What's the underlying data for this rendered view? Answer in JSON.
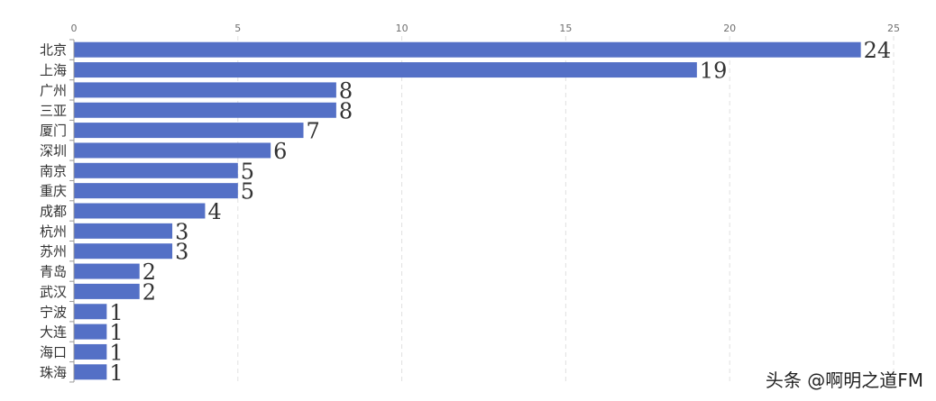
{
  "chart_data": {
    "type": "bar",
    "orientation": "horizontal",
    "categories": [
      "北京",
      "上海",
      "广州",
      "三亚",
      "厦门",
      "深圳",
      "南京",
      "重庆",
      "成都",
      "杭州",
      "苏州",
      "青岛",
      "武汉",
      "宁波",
      "大连",
      "海口",
      "珠海"
    ],
    "values": [
      24,
      19,
      8,
      8,
      7,
      6,
      5,
      5,
      4,
      3,
      3,
      2,
      2,
      1,
      1,
      1,
      1
    ],
    "xlim": [
      0,
      25
    ],
    "xticks": [
      0,
      5,
      10,
      15,
      20,
      25
    ],
    "x_axis_position": "top",
    "grid": true,
    "data_labels": true,
    "bar_color": "#5470c6",
    "title": "",
    "xlabel": "",
    "ylabel": ""
  },
  "watermark": "头条 @啊明之道FM"
}
